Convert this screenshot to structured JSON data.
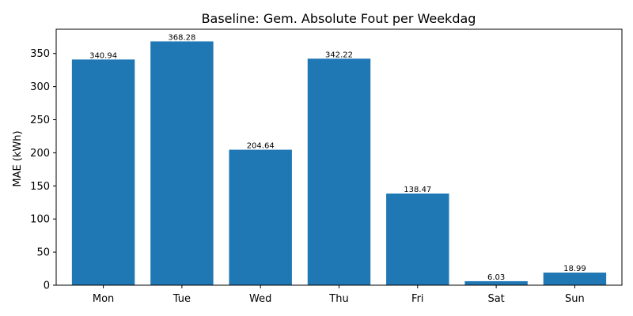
{
  "chart_data": {
    "type": "bar",
    "title": "Baseline: Gem. Absolute Fout per Weekdag",
    "xlabel": "",
    "ylabel": "MAE (kWh)",
    "categories": [
      "Mon",
      "Tue",
      "Wed",
      "Thu",
      "Fri",
      "Sat",
      "Sun"
    ],
    "values": [
      340.94,
      368.28,
      204.64,
      342.22,
      138.47,
      6.03,
      18.99
    ],
    "value_labels": [
      "340.94",
      "368.28",
      "204.64",
      "342.22",
      "138.47",
      "6.03",
      "18.99"
    ],
    "ylim": [
      0,
      386.69
    ],
    "yticks": [
      0,
      50,
      100,
      150,
      200,
      250,
      300,
      350
    ],
    "grid": false,
    "bar_color": "#1f77b4"
  }
}
